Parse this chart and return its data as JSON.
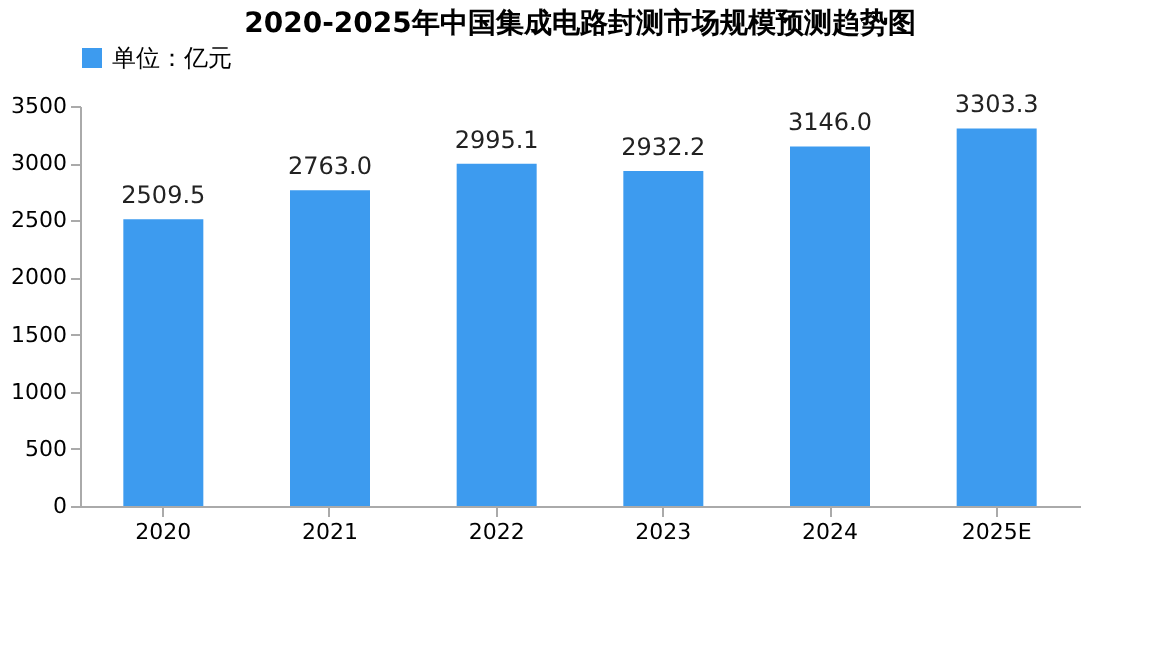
{
  "chart_data": {
    "type": "bar",
    "title": "2020-2025年中国集成电路封测市场规模预测趋势图",
    "categories": [
      "2020",
      "2021",
      "2022",
      "2023",
      "2024",
      "2025E"
    ],
    "series": [
      {
        "name": "单位：亿元",
        "color": "#3d9bef",
        "values": [
          2509.5,
          2763.0,
          2995.1,
          2932.2,
          3146.0,
          3303.3
        ],
        "value_labels": [
          "2509.5",
          "2763.0",
          "2995.1",
          "2932.2",
          "3146.0",
          "3303.3"
        ]
      }
    ],
    "ylim": [
      0,
      3500
    ],
    "yticks": [
      0,
      500,
      1000,
      1500,
      2000,
      2500,
      3000,
      3500
    ],
    "grid": false,
    "legend": "top"
  }
}
